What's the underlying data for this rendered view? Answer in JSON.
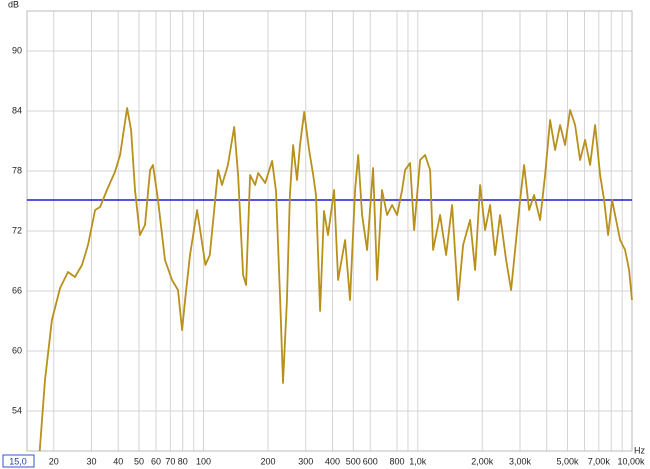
{
  "chart_data": {
    "type": "line",
    "y_axis_label": "dB",
    "x_axis_label": "Hz",
    "log_x": true,
    "grid": true,
    "xlim": [
      15,
      10000
    ],
    "ylim": [
      50,
      94
    ],
    "yticks": [
      54,
      60,
      66,
      72,
      78,
      84,
      90
    ],
    "xticks": [
      {
        "value": 15,
        "label": "15,0"
      },
      20,
      30,
      40,
      50,
      60,
      70,
      80,
      100,
      200,
      300,
      400,
      500,
      600,
      800,
      {
        "value": 1000,
        "label": "1,0k"
      },
      {
        "value": 2000,
        "label": "2,00k"
      },
      {
        "value": 3000,
        "label": "3,00k"
      },
      {
        "value": 5000,
        "label": "5,00k"
      },
      {
        "value": 7000,
        "label": "7,00k"
      },
      {
        "value": 10000,
        "label": "10,00k"
      }
    ],
    "xgrid_minor": [
      90,
      900,
      4000,
      6000,
      8000,
      9000
    ],
    "reference_line": {
      "value": 75.1,
      "color": "#1c1cd6"
    },
    "x": [
      17.2,
      18.2,
      19.6,
      21.4,
      23.3,
      25.1,
      27.1,
      28.9,
      31.2,
      32.9,
      35.4,
      38.6,
      40.8,
      44.0,
      45.9,
      47.9,
      50.5,
      53.3,
      56.3,
      58.1,
      61.3,
      66.1,
      71.3,
      76.0,
      79.4,
      82.0,
      86.5,
      93.3,
      102,
      107,
      117,
      122,
      130,
      139,
      145,
      153,
      158,
      165,
      174,
      180,
      194,
      209,
      218,
      228,
      235,
      245,
      253,
      262,
      273,
      282,
      295,
      311,
      325,
      335,
      350,
      365,
      381,
      407,
      425,
      458,
      483,
      510,
      527,
      550,
      580,
      619,
      646,
      681,
      719,
      759,
      801,
      845,
      873,
      921,
      961,
      1025,
      1082,
      1142,
      1179,
      1271,
      1356,
      1446,
      1543,
      1628,
      1755,
      1852,
      1954,
      2063,
      2176,
      2296,
      2423,
      2584,
      2727,
      2877,
      3004,
      3135,
      3309,
      3491,
      3724,
      3930,
      4147,
      4377,
      4618,
      4873,
      5142,
      5426,
      5725,
      6041,
      6375,
      6727,
      7098,
      7409,
      7737,
      8075,
      8432,
      8802,
      9288,
      9695,
      10000
    ],
    "series": [
      {
        "color": "#b8901c",
        "values": [
          50.0,
          57.1,
          63.1,
          66.3,
          67.9,
          67.4,
          68.6,
          70.6,
          74.1,
          74.4,
          76.1,
          77.9,
          79.6,
          84.3,
          82.1,
          76.1,
          71.6,
          72.6,
          78.1,
          78.6,
          75.1,
          69.1,
          67.1,
          66.1,
          62.1,
          65.1,
          69.6,
          74.1,
          68.6,
          69.6,
          78.1,
          76.6,
          78.6,
          82.4,
          77.6,
          67.6,
          66.6,
          77.6,
          76.6,
          77.8,
          76.8,
          79.0,
          76.0,
          65.0,
          56.8,
          65.0,
          75.6,
          80.6,
          77.1,
          80.6,
          83.9,
          80.1,
          77.6,
          75.6,
          64.0,
          74.0,
          71.6,
          76.1,
          67.1,
          71.1,
          65.1,
          76.1,
          79.6,
          73.6,
          70.1,
          78.3,
          67.1,
          76.1,
          73.6,
          74.6,
          73.6,
          76.1,
          78.1,
          78.8,
          72.1,
          79.1,
          79.6,
          78.1,
          70.1,
          73.6,
          69.6,
          74.6,
          65.1,
          70.6,
          73.1,
          68.1,
          76.6,
          72.1,
          74.6,
          69.6,
          73.6,
          69.1,
          66.1,
          71.1,
          75.1,
          78.6,
          74.1,
          75.6,
          73.1,
          77.6,
          83.1,
          80.1,
          82.6,
          80.6,
          84.1,
          82.6,
          79.1,
          81.1,
          78.6,
          82.6,
          77.6,
          75.1,
          71.6,
          75.1,
          73.1,
          71.1,
          70.1,
          68.1,
          65.1
        ]
      }
    ]
  }
}
